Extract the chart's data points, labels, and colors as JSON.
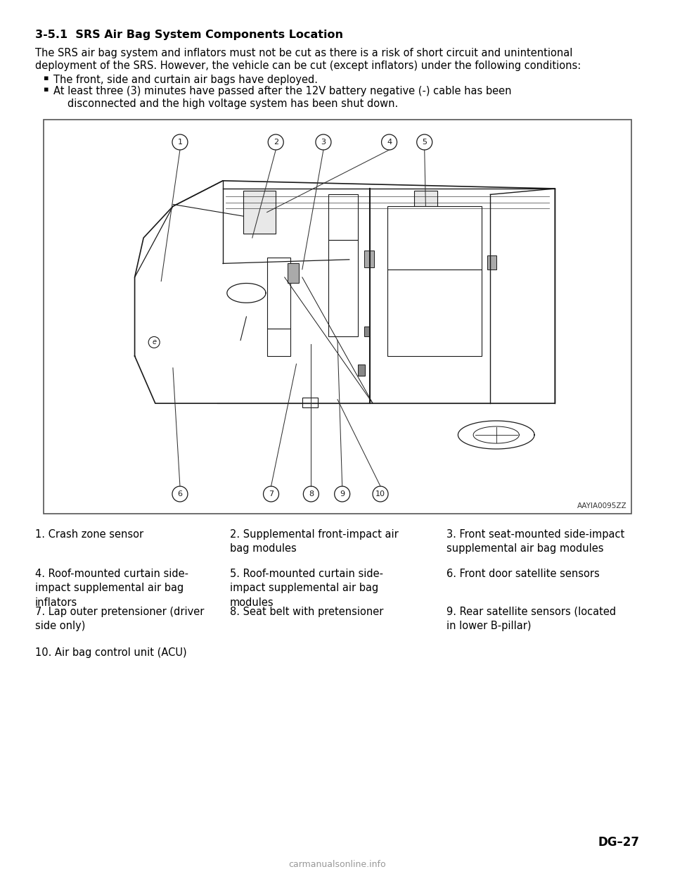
{
  "title": "3-5.1  SRS Air Bag System Components Location",
  "body_line1": "The SRS air bag system and inflators must not be cut as there is a risk of short circuit and unintentional",
  "body_line2": "deployment of the SRS. However, the vehicle can be cut (except inflators) under the following conditions:",
  "bullet1": "The front, side and curtain air bags have deployed.",
  "bullet2a": "At least three (3) minutes have passed after the 12V battery negative (-) cable has been",
  "bullet2b": "disconnected and the high voltage system has been shut down.",
  "image_credit": "AAYIA0095ZZ",
  "components": [
    [
      "1. Crash zone sensor",
      "2. Supplemental front-impact air\nbag modules",
      "3. Front seat-mounted side-impact\nsupplemental air bag modules"
    ],
    [
      "4. Roof-mounted curtain side-\nimpact supplemental air bag\ninflators",
      "5. Roof-mounted curtain side-\nimpact supplemental air bag\nmodules",
      "6. Front door satellite sensors"
    ],
    [
      "7. Lap outer pretensioner (driver\nside only)",
      "8. Seat belt with pretensioner",
      "9. Rear satellite sensors (located\nin lower B-pillar)"
    ],
    [
      "10. Air bag control unit (ACU)",
      "",
      ""
    ]
  ],
  "page_number": "DG–27",
  "watermark": "carmanualsonline.info",
  "bg_color": "#ffffff",
  "text_color": "#000000",
  "title_fontsize": 11.5,
  "body_fontsize": 10.5,
  "component_fontsize": 10.5,
  "fig_width": 9.6,
  "fig_height": 12.42
}
